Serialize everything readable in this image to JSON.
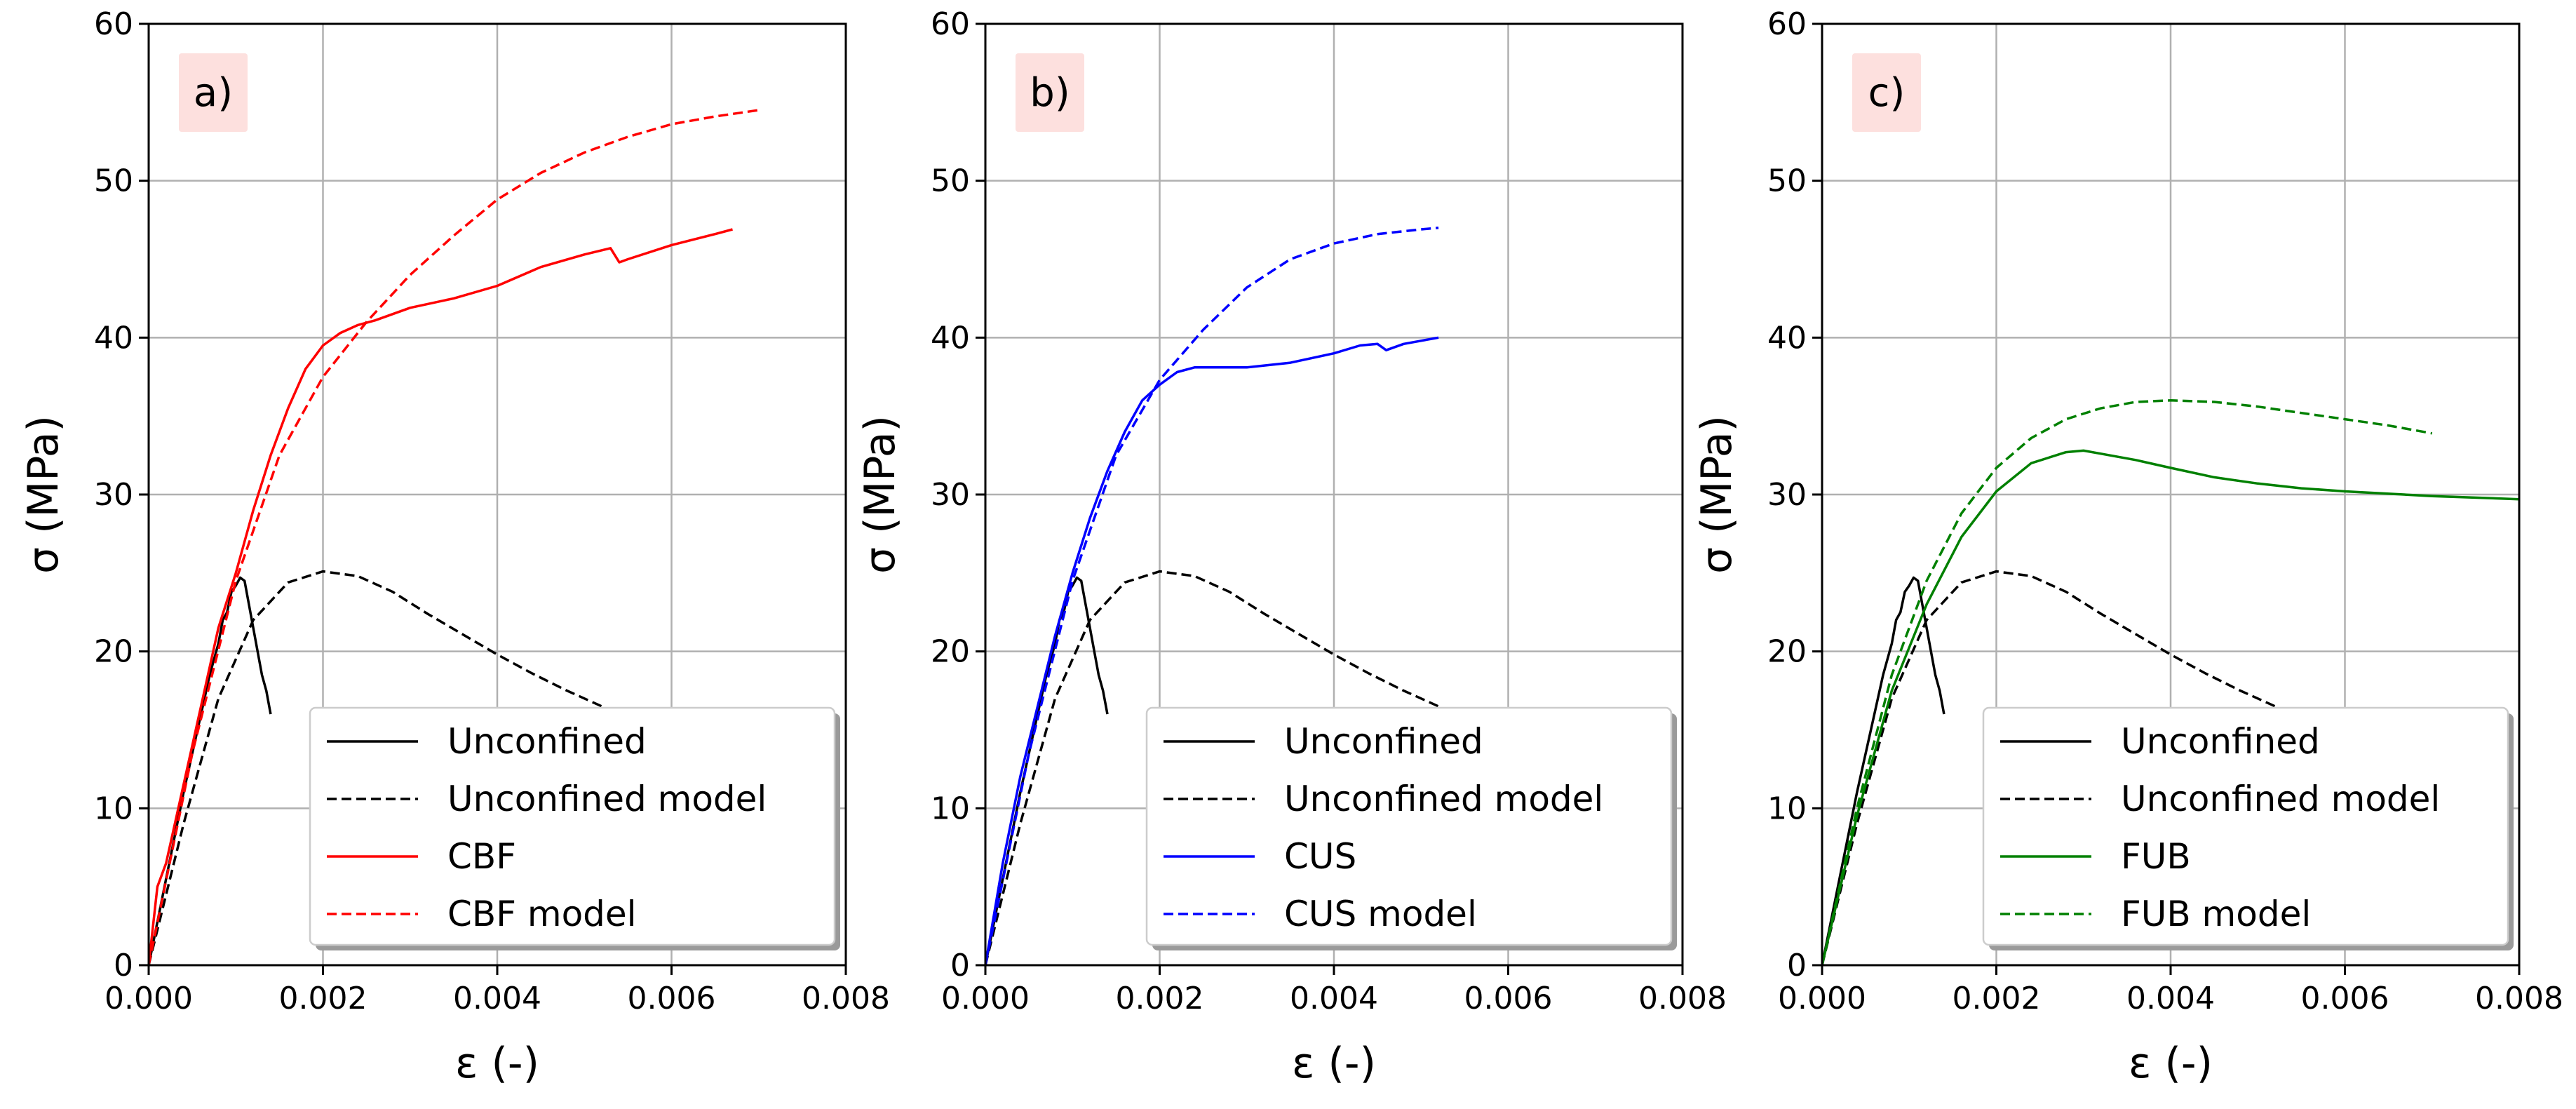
{
  "colors": {
    "black": "#000000",
    "red": "#ff0000",
    "blue": "#0000ff",
    "green": "#008000",
    "grid": "#b0b0b0",
    "tag_bg": "#fde0de"
  },
  "chart_data": [
    {
      "type": "line",
      "panel_label": "a)",
      "xlabel": "ε (-)",
      "ylabel": "σ  (MPa)",
      "xlim": [
        0,
        0.008
      ],
      "ylim": [
        0,
        60
      ],
      "xticks": [
        "0.000",
        "0.002",
        "0.004",
        "0.006",
        "0.008"
      ],
      "yticks": [
        "0",
        "10",
        "20",
        "30",
        "40",
        "50",
        "60"
      ],
      "grid": true,
      "legend_position": "lower-right",
      "series": [
        {
          "name": "Unconfined",
          "color": "#000000",
          "dash": "solid",
          "x": [
            0,
            0.0002,
            0.0004,
            0.0006,
            0.0007,
            0.0008,
            0.00085,
            0.0009,
            0.00095,
            0.001,
            0.00105,
            0.0011,
            0.00115,
            0.0012,
            0.00125,
            0.0013,
            0.00135,
            0.0014
          ],
          "y": [
            0,
            5.5,
            11,
            16,
            18.5,
            20.5,
            22,
            22.5,
            23.8,
            24.2,
            24.7,
            24.5,
            23,
            21.5,
            20,
            18.5,
            17.5,
            16
          ]
        },
        {
          "name": "Unconfined model",
          "color": "#000000",
          "dash": "dashed",
          "x": [
            0,
            0.0004,
            0.0008,
            0.0012,
            0.0016,
            0.002,
            0.0024,
            0.0028,
            0.0032,
            0.0036,
            0.004,
            0.0044,
            0.0048,
            0.0052
          ],
          "y": [
            0,
            9,
            17,
            22,
            24.4,
            25.1,
            24.8,
            23.8,
            22.4,
            21.1,
            19.8,
            18.6,
            17.5,
            16.5
          ]
        },
        {
          "name": "CBF",
          "color": "#ff0000",
          "dash": "solid",
          "x": [
            0,
            0.0001,
            0.0002,
            0.0004,
            0.0006,
            0.0008,
            0.001,
            0.0012,
            0.0014,
            0.0016,
            0.0018,
            0.002,
            0.0022,
            0.0024,
            0.0026,
            0.003,
            0.0035,
            0.004,
            0.0045,
            0.005,
            0.0053,
            0.0054,
            0.0055,
            0.006,
            0.0065,
            0.0067
          ],
          "y": [
            0,
            5,
            6.5,
            11.5,
            16.5,
            21.5,
            25,
            29,
            32.5,
            35.5,
            38,
            39.5,
            40.3,
            40.8,
            41.1,
            41.9,
            42.5,
            43.3,
            44.5,
            45.3,
            45.7,
            44.8,
            45,
            45.9,
            46.6,
            46.9
          ]
        },
        {
          "name": "CBF model",
          "color": "#ff0000",
          "dash": "dashed",
          "x": [
            0,
            0.0005,
            0.001,
            0.0015,
            0.002,
            0.0025,
            0.003,
            0.0035,
            0.004,
            0.0045,
            0.005,
            0.0055,
            0.006,
            0.0065,
            0.007
          ],
          "y": [
            0,
            13.5,
            24.5,
            32.5,
            37.5,
            41,
            44,
            46.5,
            48.8,
            50.5,
            51.8,
            52.8,
            53.6,
            54.1,
            54.5
          ]
        }
      ],
      "legend": [
        "Unconfined",
        "Unconfined model",
        "CBF",
        "CBF model"
      ]
    },
    {
      "type": "line",
      "panel_label": "b)",
      "xlabel": "ε (-)",
      "ylabel": "σ  (MPa)",
      "xlim": [
        0,
        0.008
      ],
      "ylim": [
        0,
        60
      ],
      "xticks": [
        "0.000",
        "0.002",
        "0.004",
        "0.006",
        "0.008"
      ],
      "yticks": [
        "0",
        "10",
        "20",
        "30",
        "40",
        "50",
        "60"
      ],
      "grid": true,
      "legend_position": "lower-right",
      "series": [
        {
          "name": "Unconfined",
          "color": "#000000",
          "dash": "solid",
          "x": [
            0,
            0.0002,
            0.0004,
            0.0006,
            0.0007,
            0.0008,
            0.00085,
            0.0009,
            0.00095,
            0.001,
            0.00105,
            0.0011,
            0.00115,
            0.0012,
            0.00125,
            0.0013,
            0.00135,
            0.0014
          ],
          "y": [
            0,
            5.5,
            11,
            16,
            18.5,
            20.5,
            22,
            22.5,
            23.8,
            24.2,
            24.7,
            24.5,
            23,
            21.5,
            20,
            18.5,
            17.5,
            16
          ]
        },
        {
          "name": "Unconfined model",
          "color": "#000000",
          "dash": "dashed",
          "x": [
            0,
            0.0004,
            0.0008,
            0.0012,
            0.0016,
            0.002,
            0.0024,
            0.0028,
            0.0032,
            0.0036,
            0.004,
            0.0044,
            0.0048,
            0.0052
          ],
          "y": [
            0,
            9,
            17,
            22,
            24.4,
            25.1,
            24.8,
            23.8,
            22.4,
            21.1,
            19.8,
            18.6,
            17.5,
            16.5
          ]
        },
        {
          "name": "CUS",
          "color": "#0000ff",
          "dash": "solid",
          "x": [
            0,
            0.0002,
            0.0004,
            0.0006,
            0.0008,
            0.001,
            0.0012,
            0.0014,
            0.0016,
            0.0018,
            0.002,
            0.0022,
            0.0024,
            0.003,
            0.0035,
            0.004,
            0.0043,
            0.0045,
            0.0046,
            0.0048,
            0.005,
            0.0052
          ],
          "y": [
            0,
            6.5,
            12,
            16.5,
            21,
            25,
            28.5,
            31.5,
            34,
            36,
            37,
            37.8,
            38.1,
            38.1,
            38.4,
            39,
            39.5,
            39.6,
            39.2,
            39.6,
            39.8,
            40
          ]
        },
        {
          "name": "CUS model",
          "color": "#0000ff",
          "dash": "dashed",
          "x": [
            0,
            0.0005,
            0.001,
            0.0015,
            0.002,
            0.0025,
            0.003,
            0.0035,
            0.004,
            0.0045,
            0.005,
            0.0052
          ],
          "y": [
            0,
            13.5,
            24.5,
            32.5,
            37.3,
            40.5,
            43.2,
            45,
            46,
            46.6,
            46.9,
            47
          ]
        }
      ],
      "legend": [
        "Unconfined",
        "Unconfined model",
        "CUS",
        "CUS model"
      ]
    },
    {
      "type": "line",
      "panel_label": "c)",
      "xlabel": "ε (-)",
      "ylabel": "σ  (MPa)",
      "xlim": [
        0,
        0.008
      ],
      "ylim": [
        0,
        60
      ],
      "xticks": [
        "0.000",
        "0.002",
        "0.004",
        "0.006",
        "0.008"
      ],
      "yticks": [
        "0",
        "10",
        "20",
        "30",
        "40",
        "50",
        "60"
      ],
      "grid": true,
      "legend_position": "lower-right",
      "series": [
        {
          "name": "Unconfined",
          "color": "#000000",
          "dash": "solid",
          "x": [
            0,
            0.0002,
            0.0004,
            0.0006,
            0.0007,
            0.0008,
            0.00085,
            0.0009,
            0.00095,
            0.001,
            0.00105,
            0.0011,
            0.00115,
            0.0012,
            0.00125,
            0.0013,
            0.00135,
            0.0014
          ],
          "y": [
            0,
            5.5,
            11,
            16,
            18.5,
            20.5,
            22,
            22.5,
            23.8,
            24.2,
            24.7,
            24.5,
            23,
            21.5,
            20,
            18.5,
            17.5,
            16
          ]
        },
        {
          "name": "Unconfined model",
          "color": "#000000",
          "dash": "dashed",
          "x": [
            0,
            0.0004,
            0.0008,
            0.0012,
            0.0016,
            0.002,
            0.0024,
            0.0028,
            0.0032,
            0.0036,
            0.004,
            0.0044,
            0.0048,
            0.0052
          ],
          "y": [
            0,
            9,
            17,
            22,
            24.4,
            25.1,
            24.8,
            23.8,
            22.4,
            21.1,
            19.8,
            18.6,
            17.5,
            16.5
          ]
        },
        {
          "name": "FUB",
          "color": "#008000",
          "dash": "solid",
          "x": [
            0,
            0.0004,
            0.0008,
            0.0012,
            0.0016,
            0.002,
            0.0024,
            0.0028,
            0.003,
            0.0032,
            0.0036,
            0.004,
            0.0045,
            0.005,
            0.0055,
            0.006,
            0.007,
            0.008
          ],
          "y": [
            0,
            9.5,
            17.5,
            23,
            27.3,
            30.2,
            32,
            32.7,
            32.8,
            32.6,
            32.2,
            31.7,
            31.1,
            30.7,
            30.4,
            30.2,
            29.9,
            29.7
          ]
        },
        {
          "name": "FUB model",
          "color": "#008000",
          "dash": "dashed",
          "x": [
            0,
            0.0004,
            0.0008,
            0.0012,
            0.0016,
            0.002,
            0.0024,
            0.0028,
            0.0032,
            0.0036,
            0.004,
            0.0045,
            0.005,
            0.0055,
            0.006,
            0.0065,
            0.007
          ],
          "y": [
            0,
            10,
            18.5,
            24.5,
            28.8,
            31.7,
            33.6,
            34.8,
            35.5,
            35.9,
            36,
            35.9,
            35.6,
            35.2,
            34.8,
            34.4,
            33.9
          ]
        }
      ],
      "legend": [
        "Unconfined",
        "Unconfined model",
        "FUB",
        "FUB model"
      ]
    }
  ]
}
